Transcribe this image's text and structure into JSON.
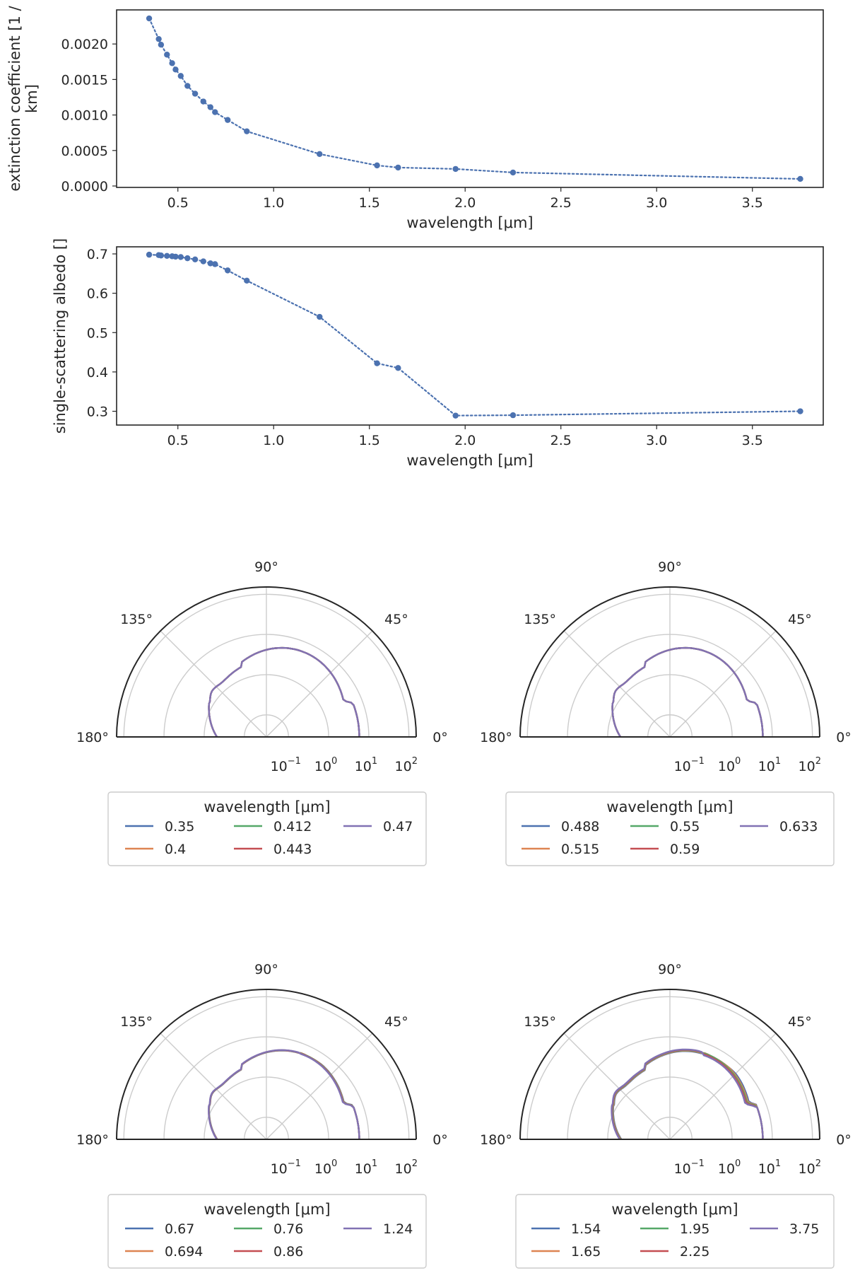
{
  "chart_data": [
    {
      "type": "line",
      "marker": "dot",
      "line_style": "dotted",
      "xlabel": "wavelength [μm]",
      "ylabel_lines": [
        "extinction coefficient [1 /",
        "km]"
      ],
      "xlim": [
        0.18,
        3.87
      ],
      "ylim": [
        -2e-05,
        0.00248
      ],
      "xticks": [
        0.5,
        1.0,
        1.5,
        2.0,
        2.5,
        3.0,
        3.5
      ],
      "xtick_labels": [
        "0.5",
        "1.0",
        "1.5",
        "2.0",
        "2.5",
        "3.0",
        "3.5"
      ],
      "yticks": [
        0.0,
        0.0005,
        0.001,
        0.0015,
        0.002
      ],
      "ytick_labels": [
        "0.0000",
        "0.0005",
        "0.0010",
        "0.0015",
        "0.0020"
      ],
      "color": "#4c72b0",
      "x": [
        0.35,
        0.4,
        0.412,
        0.443,
        0.47,
        0.488,
        0.515,
        0.55,
        0.59,
        0.633,
        0.67,
        0.694,
        0.76,
        0.86,
        1.24,
        1.54,
        1.65,
        1.95,
        2.25,
        3.75
      ],
      "y": [
        0.00236,
        0.00207,
        0.00199,
        0.00185,
        0.00173,
        0.00164,
        0.00155,
        0.00141,
        0.0013,
        0.00119,
        0.00111,
        0.00104,
        0.00093,
        0.00077,
        0.00045,
        0.00029,
        0.00026,
        0.00024,
        0.00019,
        0.0001
      ]
    },
    {
      "type": "line",
      "marker": "dot",
      "line_style": "dotted",
      "xlabel": "wavelength [μm]",
      "ylabel_lines": [
        "single-scattering albedo []"
      ],
      "xlim": [
        0.18,
        3.87
      ],
      "ylim": [
        0.265,
        0.718
      ],
      "xticks": [
        0.5,
        1.0,
        1.5,
        2.0,
        2.5,
        3.0,
        3.5
      ],
      "xtick_labels": [
        "0.5",
        "1.0",
        "1.5",
        "2.0",
        "2.5",
        "3.0",
        "3.5"
      ],
      "yticks": [
        0.3,
        0.4,
        0.5,
        0.6,
        0.7
      ],
      "ytick_labels": [
        "0.3",
        "0.4",
        "0.5",
        "0.6",
        "0.7"
      ],
      "color": "#4c72b0",
      "x": [
        0.35,
        0.4,
        0.412,
        0.443,
        0.47,
        0.488,
        0.515,
        0.55,
        0.59,
        0.633,
        0.67,
        0.694,
        0.76,
        0.86,
        1.24,
        1.54,
        1.65,
        1.95,
        2.25,
        3.75
      ],
      "y": [
        0.698,
        0.697,
        0.696,
        0.695,
        0.694,
        0.693,
        0.692,
        0.689,
        0.686,
        0.681,
        0.676,
        0.674,
        0.658,
        0.632,
        0.54,
        0.422,
        0.41,
        0.289,
        0.29,
        0.3
      ]
    },
    {
      "type": "polar",
      "r_scale": "log",
      "theta_labels": [
        "0°",
        "45°",
        "90°",
        "135°",
        "180°"
      ],
      "r_tick_base": "10",
      "r_tick_exponents": [
        "−1",
        "0",
        "1",
        "2"
      ],
      "legend": {
        "title": "wavelength [μm]",
        "placement": "below",
        "columns": 3
      },
      "series": [
        {
          "name": "0.35",
          "color": "#4c72b0"
        },
        {
          "name": "0.4",
          "color": "#dd8452"
        },
        {
          "name": "0.412",
          "color": "#55a868"
        },
        {
          "name": "0.443",
          "color": "#c44e52"
        },
        {
          "name": "0.47",
          "color": "#8172b3"
        }
      ]
    },
    {
      "type": "polar",
      "r_scale": "log",
      "theta_labels": [
        "0°",
        "45°",
        "90°",
        "135°",
        "180°"
      ],
      "r_tick_base": "10",
      "r_tick_exponents": [
        "−1",
        "0",
        "1",
        "2"
      ],
      "legend": {
        "title": "wavelength [μm]",
        "placement": "below",
        "columns": 3
      },
      "series": [
        {
          "name": "0.488",
          "color": "#4c72b0"
        },
        {
          "name": "0.515",
          "color": "#dd8452"
        },
        {
          "name": "0.55",
          "color": "#55a868"
        },
        {
          "name": "0.59",
          "color": "#c44e52"
        },
        {
          "name": "0.633",
          "color": "#8172b3"
        }
      ]
    },
    {
      "type": "polar",
      "r_scale": "log",
      "theta_labels": [
        "0°",
        "45°",
        "90°",
        "135°",
        "180°"
      ],
      "r_tick_base": "10",
      "r_tick_exponents": [
        "−1",
        "0",
        "1",
        "2"
      ],
      "legend": {
        "title": "wavelength [μm]",
        "placement": "below",
        "columns": 3
      },
      "series": [
        {
          "name": "0.67",
          "color": "#4c72b0"
        },
        {
          "name": "0.694",
          "color": "#dd8452"
        },
        {
          "name": "0.76",
          "color": "#55a868"
        },
        {
          "name": "0.86",
          "color": "#c44e52"
        },
        {
          "name": "1.24",
          "color": "#8172b3"
        }
      ]
    },
    {
      "type": "polar",
      "r_scale": "log",
      "theta_labels": [
        "0°",
        "45°",
        "90°",
        "135°",
        "180°"
      ],
      "r_tick_base": "10",
      "r_tick_exponents": [
        "−1",
        "0",
        "1",
        "2"
      ],
      "legend": {
        "title": "wavelength [μm]",
        "placement": "below",
        "columns": 3
      },
      "series": [
        {
          "name": "1.54",
          "color": "#4c72b0"
        },
        {
          "name": "1.65",
          "color": "#dd8452"
        },
        {
          "name": "1.95",
          "color": "#55a868"
        },
        {
          "name": "2.25",
          "color": "#c44e52"
        },
        {
          "name": "3.75",
          "color": "#8172b3"
        }
      ]
    }
  ]
}
